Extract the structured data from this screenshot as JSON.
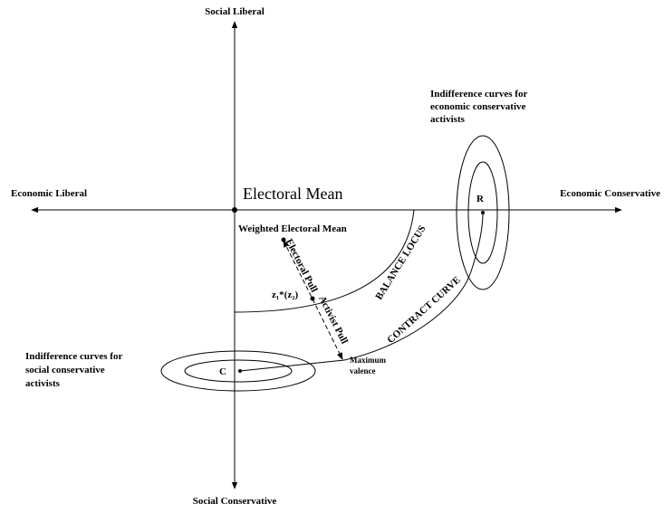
{
  "axes": {
    "top": "Social Liberal",
    "bottom": "Social Conservative",
    "left": "Economic Liberal",
    "right": "Economic Conservative"
  },
  "points": {
    "origin": "Electoral Mean",
    "weighted": "Weighted Electoral Mean",
    "R": "R",
    "C": "C",
    "z": "z₁*(z₂)",
    "max_valence": [
      "Maximum",
      "valence"
    ]
  },
  "curves": {
    "balance": "BALANCE LOCUS",
    "contract": "CONTRACT CURVE"
  },
  "pulls": {
    "electoral": "Electoral Pull",
    "activist": "Activist Pull"
  },
  "notes": {
    "economic": [
      "Indifference curves for",
      "economic conservative",
      "activists"
    ],
    "social": [
      "Indifference curves for",
      "social conservative",
      "activists"
    ]
  }
}
